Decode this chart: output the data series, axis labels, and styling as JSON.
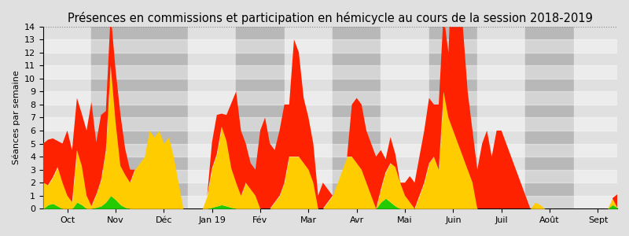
{
  "title": "Présences en commissions et participation en hémicycle au cours de la session 2018-2019",
  "ylabel": "Séances par semaine",
  "xlabels": [
    "Oct",
    "Nov",
    "Déc",
    "Jan 19",
    "Fév",
    "Mar",
    "Avr",
    "Mai",
    "Juin",
    "Juil",
    "Août",
    "Sept"
  ],
  "ylim": [
    0,
    14
  ],
  "yticks": [
    0,
    1,
    2,
    3,
    4,
    5,
    6,
    7,
    8,
    9,
    10,
    11,
    12,
    13,
    14
  ],
  "color_green": "#22cc00",
  "color_yellow": "#ffcc00",
  "color_red": "#ff2200",
  "bg_light": "#e0e0e0",
  "bg_dark": "#b8b8b8",
  "title_fontsize": 10.5,
  "month_boundaries": [
    0,
    10,
    20,
    30,
    40,
    50,
    60,
    70,
    80,
    90,
    100,
    110,
    120
  ],
  "month_colors": [
    "#e0e0e0",
    "#b8b8b8",
    "#b8b8b8",
    "#e0e0e0",
    "#b8b8b8",
    "#e0e0e0",
    "#b8b8b8",
    "#e0e0e0",
    "#b8b8b8",
    "#e0e0e0",
    "#b8b8b8",
    "#e0e0e0"
  ],
  "green": [
    0,
    0.3,
    0.4,
    0.2,
    0,
    0,
    0,
    0.5,
    0.3,
    0,
    0,
    0.1,
    0.2,
    0.5,
    1.0,
    0.7,
    0.3,
    0.1,
    0,
    0,
    0,
    0,
    0,
    0,
    0,
    0,
    0,
    0,
    0,
    0,
    0,
    0,
    0,
    0,
    0,
    0.1,
    0.2,
    0.3,
    0.2,
    0.1,
    0,
    0,
    0,
    0,
    0,
    0,
    0,
    0,
    0,
    0,
    0,
    0,
    0,
    0,
    0,
    0,
    0,
    0,
    0,
    0,
    0,
    0,
    0,
    0,
    0,
    0,
    0,
    0,
    0,
    0,
    0.5,
    0.8,
    0.5,
    0.2,
    0,
    0,
    0,
    0,
    0,
    0,
    0,
    0,
    0,
    0,
    0,
    0,
    0,
    0,
    0,
    0,
    0,
    0,
    0,
    0,
    0,
    0,
    0,
    0,
    0,
    0,
    0,
    0,
    0,
    0,
    0,
    0,
    0,
    0,
    0,
    0,
    0,
    0,
    0,
    0,
    0,
    0,
    0,
    0,
    0.3,
    0.1
  ],
  "yellow": [
    2,
    1.5,
    2,
    3,
    2,
    1,
    0.5,
    4,
    3,
    1,
    0.2,
    1,
    2,
    4,
    10,
    6,
    3,
    2.5,
    2,
    3,
    3.5,
    4,
    6,
    5.5,
    6,
    5,
    5.5,
    4,
    2,
    0,
    0,
    0,
    0,
    0,
    1,
    3,
    4,
    6,
    5,
    3,
    2,
    1,
    2,
    1.5,
    1,
    0,
    0,
    0,
    0.5,
    1,
    2,
    4,
    4,
    4,
    3.5,
    3,
    2,
    0,
    0,
    0.5,
    1,
    2,
    3,
    4,
    4,
    3.5,
    3,
    2,
    1,
    0,
    1,
    2,
    3,
    3,
    2,
    1,
    0.5,
    0,
    1,
    2,
    3.5,
    4,
    3,
    9,
    7,
    6,
    5,
    4,
    3,
    2,
    0,
    0,
    0,
    0,
    0,
    0,
    0,
    0,
    0,
    0,
    0,
    0,
    0.5,
    0.3,
    0,
    0,
    0,
    0,
    0,
    0,
    0,
    0,
    0,
    0,
    0,
    0,
    0,
    0,
    0.5,
    0
  ],
  "red": [
    3,
    3.5,
    3,
    2,
    3,
    5,
    4,
    4,
    4,
    5,
    8,
    4,
    5,
    3,
    4,
    4,
    4,
    2,
    1,
    0,
    0,
    0,
    0,
    0,
    0,
    0,
    0,
    0,
    0,
    0,
    0,
    0,
    0,
    0,
    0,
    2,
    3,
    1,
    2,
    5,
    7,
    5,
    3,
    2,
    2,
    6,
    7,
    5,
    4,
    5,
    6,
    4,
    9,
    8,
    5,
    4,
    3,
    1,
    2,
    1,
    0,
    0,
    0,
    0,
    4,
    5,
    5,
    4,
    4,
    4,
    3,
    1,
    2,
    1,
    0,
    1,
    2,
    2,
    3,
    4,
    5,
    4,
    5,
    6,
    5,
    14,
    12,
    10,
    6,
    4,
    3,
    5,
    6,
    4,
    6,
    6,
    5,
    4,
    3,
    2,
    1,
    0,
    0,
    0,
    0,
    0,
    0,
    0,
    0,
    0,
    0,
    0,
    0,
    0,
    0,
    0,
    0,
    0,
    0,
    1
  ]
}
